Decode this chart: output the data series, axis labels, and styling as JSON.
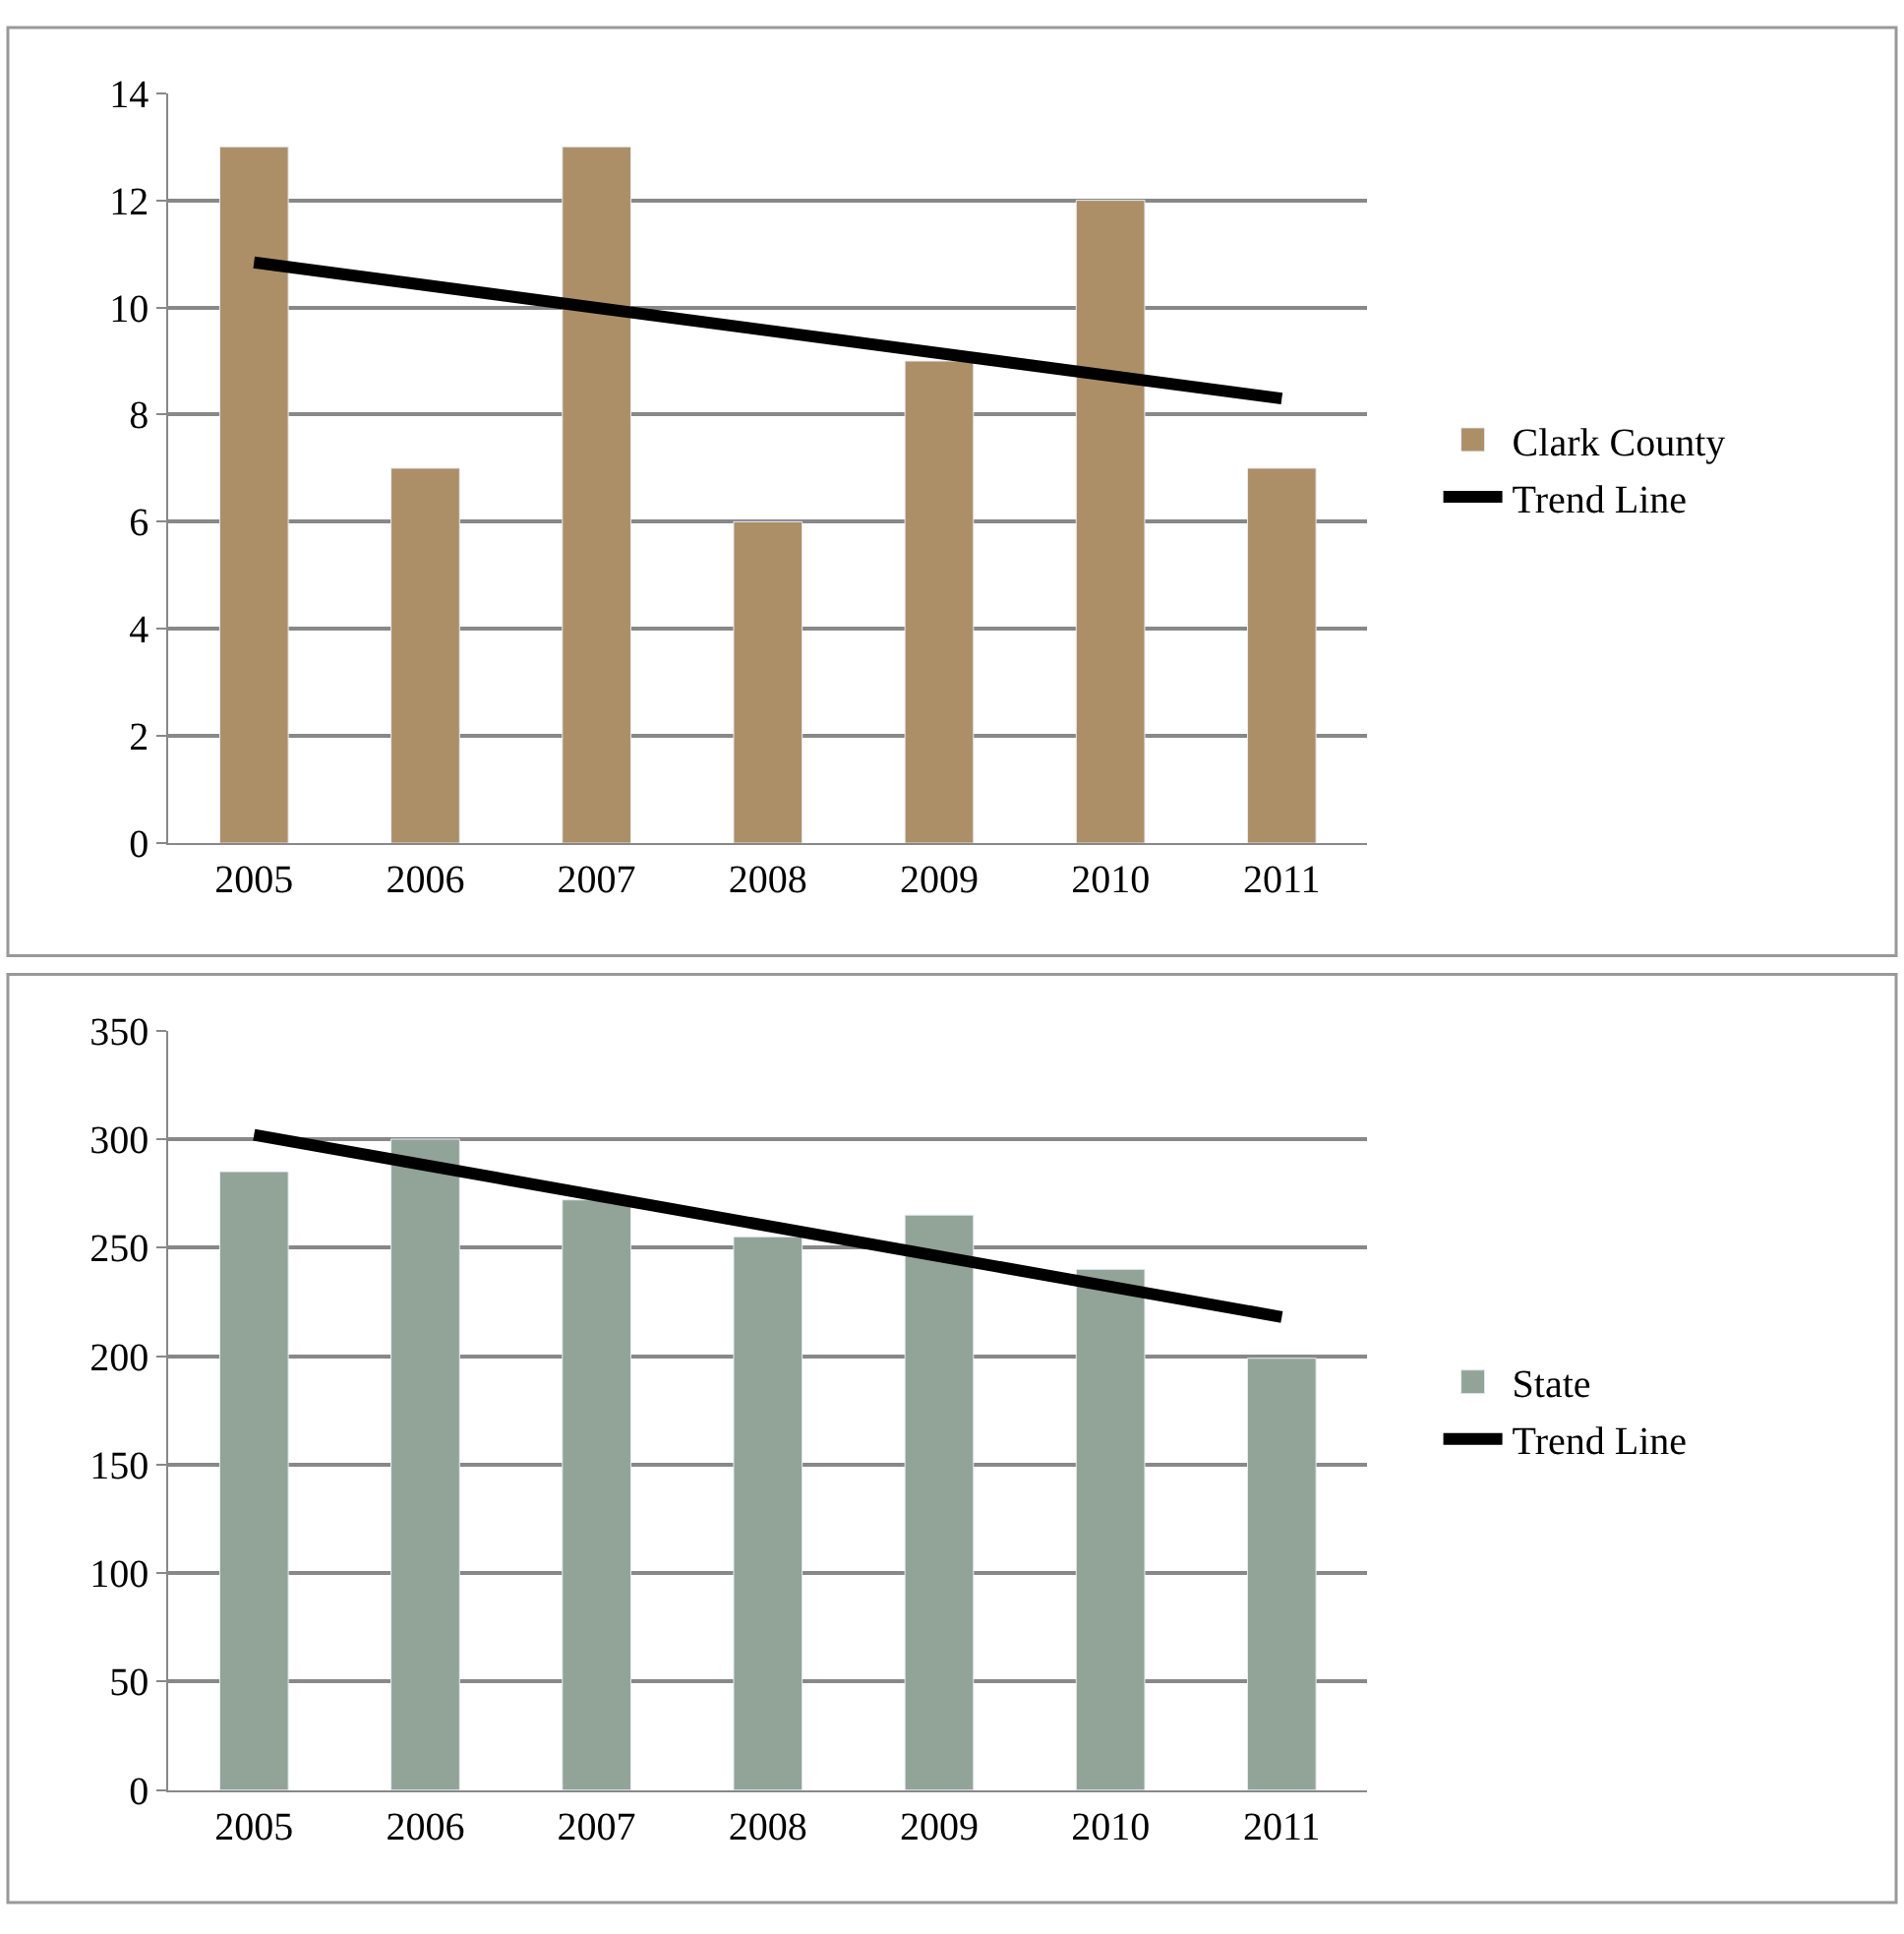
{
  "chart_data": [
    {
      "type": "bar",
      "categories": [
        "2005",
        "2006",
        "2007",
        "2008",
        "2009",
        "2010",
        "2011"
      ],
      "series": [
        {
          "name": "Clark County",
          "color": "#ad8f67",
          "values": [
            13,
            7,
            13,
            6,
            9,
            12,
            7
          ]
        },
        {
          "name": "Trend Line",
          "type": "line",
          "color": "#000000",
          "values": [
            10.84,
            null,
            null,
            null,
            null,
            null,
            8.3
          ]
        }
      ],
      "ylim": [
        0,
        14
      ],
      "yticks": [
        0,
        2,
        4,
        6,
        8,
        10,
        12,
        14
      ],
      "grid": "y",
      "legend": "right"
    },
    {
      "type": "bar",
      "categories": [
        "2005",
        "2006",
        "2007",
        "2008",
        "2009",
        "2010",
        "2011"
      ],
      "series": [
        {
          "name": "State",
          "color": "#92a398",
          "values": [
            285,
            300,
            272,
            255,
            265,
            240,
            199
          ]
        },
        {
          "name": "Trend Line",
          "type": "line",
          "color": "#000000",
          "values": [
            302,
            null,
            null,
            null,
            null,
            null,
            218
          ]
        }
      ],
      "ylim": [
        0,
        350
      ],
      "yticks": [
        0,
        50,
        100,
        150,
        200,
        250,
        300,
        350
      ],
      "grid": "y",
      "legend": "right"
    }
  ]
}
